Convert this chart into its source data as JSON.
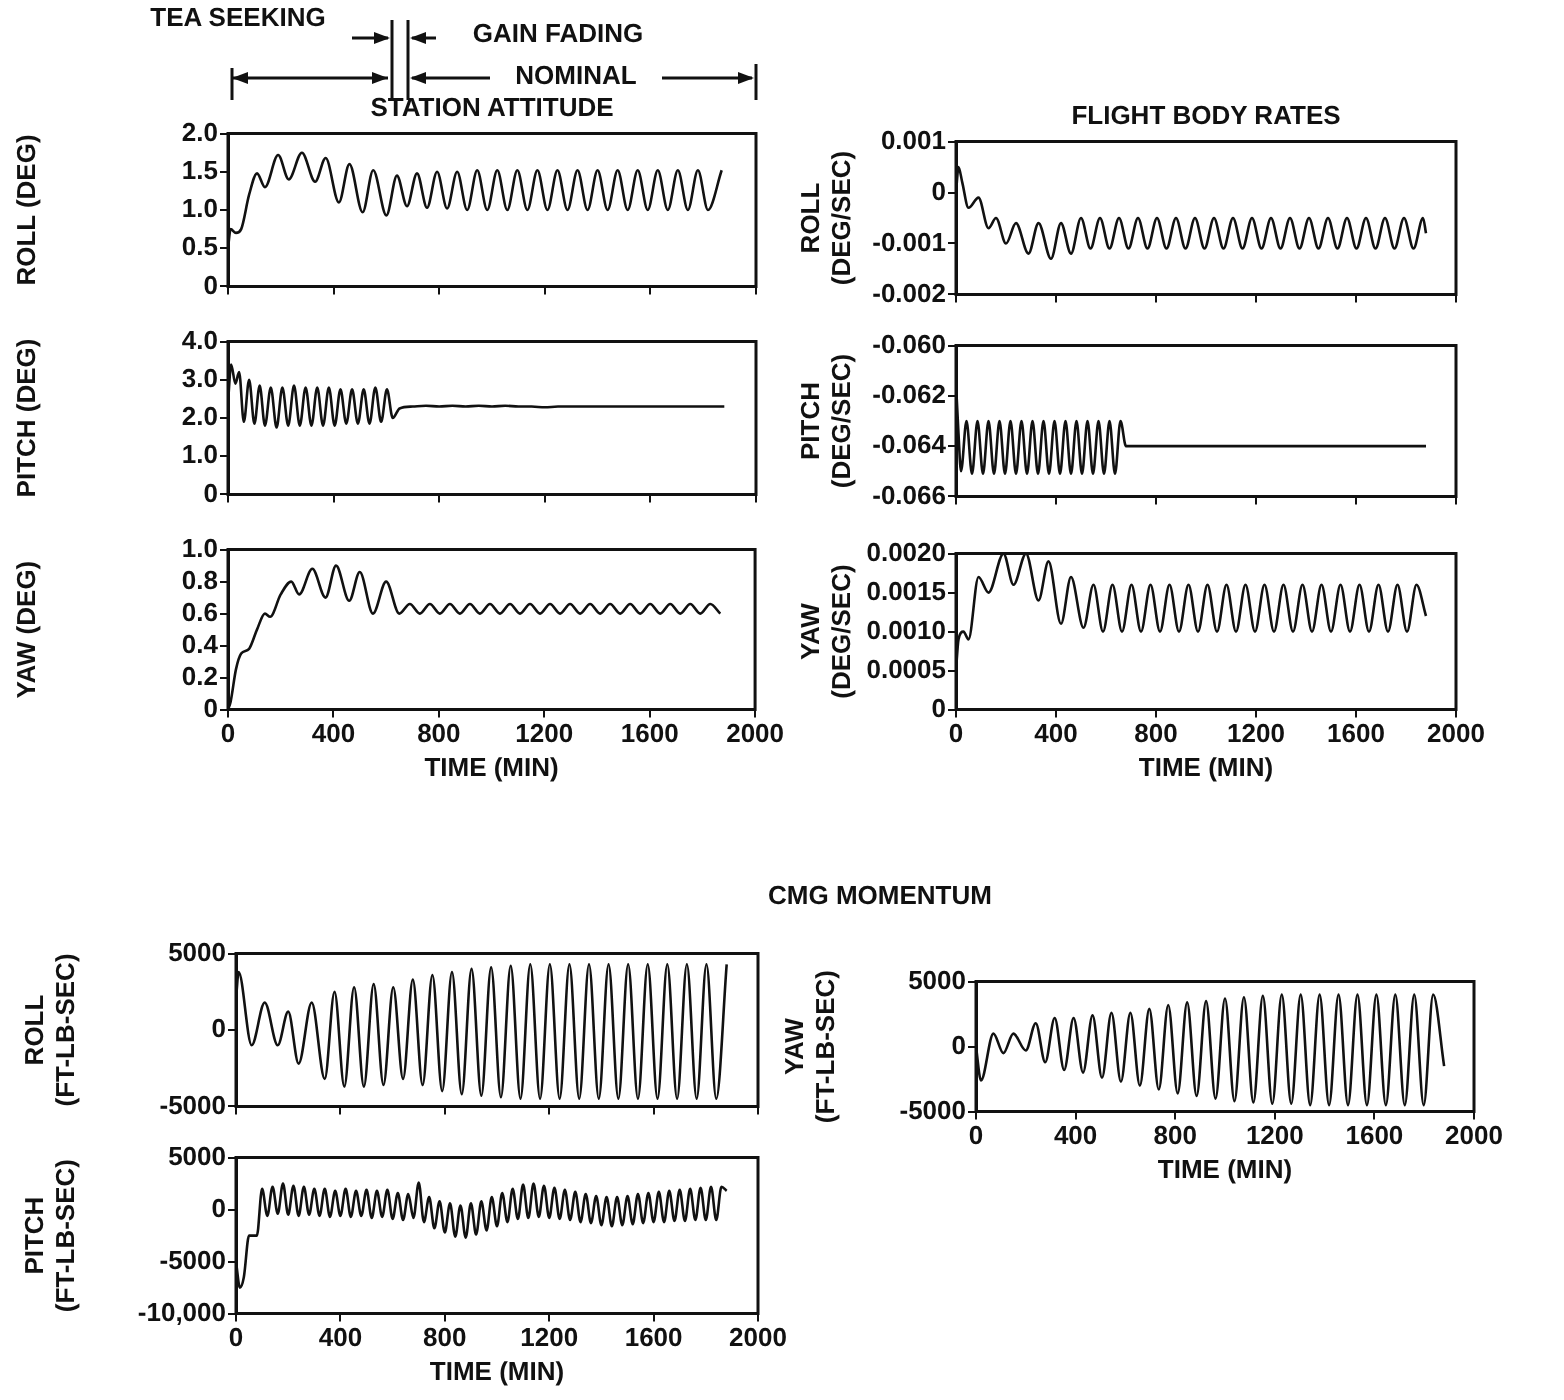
{
  "chart_data": [
    {
      "type": "line",
      "title": "STATION ATTITUDE",
      "ylabel": "ROLL (DEG)",
      "annotations": [
        "TEA SEEKING",
        "GAIN FADING",
        "NOMINAL"
      ],
      "xlim": [
        0,
        2000
      ],
      "xticks": [
        0,
        400,
        800,
        1200,
        1600,
        2000
      ],
      "ylim": [
        0,
        2
      ],
      "yticks": [
        0,
        0.5,
        {
          "value": 1,
          "label": "1.0"
        },
        1.5,
        {
          "value": 2,
          "label": "2.0"
        }
      ],
      "tick_labels": "y",
      "x": [
        0,
        10,
        30,
        50,
        80,
        110,
        140,
        190,
        230,
        280,
        330,
        370,
        420,
        460,
        510,
        550,
        600,
        640,
        678,
        716,
        754,
        792,
        830,
        868,
        906,
        944,
        982,
        1020,
        1058,
        1096,
        1134,
        1172,
        1210,
        1248,
        1286,
        1324,
        1362,
        1400,
        1438,
        1476,
        1514,
        1552,
        1590,
        1628,
        1666,
        1704,
        1742,
        1780,
        1818,
        1870
      ],
      "series": [
        {
          "color": "#111111",
          "values": [
            0.5,
            0.75,
            0.7,
            0.75,
            1.2,
            1.48,
            1.3,
            1.72,
            1.4,
            1.75,
            1.37,
            1.68,
            1.1,
            1.6,
            0.97,
            1.52,
            0.93,
            1.45,
            1.05,
            1.48,
            1.03,
            1.5,
            1.02,
            1.5,
            1.0,
            1.52,
            1.0,
            1.52,
            1.0,
            1.52,
            1.0,
            1.52,
            1.0,
            1.52,
            1.0,
            1.52,
            1.0,
            1.52,
            1.0,
            1.52,
            1.0,
            1.52,
            1.0,
            1.52,
            1.0,
            1.52,
            1.0,
            1.52,
            1.0,
            1.52
          ]
        }
      ]
    },
    {
      "type": "line",
      "ylabel": "PITCH (DEG)",
      "xlim": [
        0,
        2000
      ],
      "xticks": [
        0,
        400,
        800,
        1200,
        1600,
        2000
      ],
      "ylim": [
        0,
        4
      ],
      "yticks": [
        0,
        {
          "value": 1,
          "label": "1.0"
        },
        {
          "value": 2,
          "label": "2.0"
        },
        {
          "value": 3,
          "label": "3.0"
        },
        {
          "value": 4,
          "label": "4.0"
        }
      ],
      "tick_labels": "y",
      "x": [
        0,
        12,
        28,
        42,
        60,
        80,
        100,
        120,
        140,
        162,
        184,
        206,
        228,
        250,
        272,
        294,
        316,
        338,
        360,
        382,
        404,
        426,
        448,
        470,
        492,
        514,
        536,
        558,
        580,
        602,
        624,
        650,
        700,
        750,
        800,
        850,
        900,
        950,
        1000,
        1050,
        1100,
        1150,
        1200,
        1250,
        1300,
        1350,
        1400,
        1450,
        1500,
        1550,
        1600,
        1650,
        1700,
        1750,
        1800,
        1850,
        1880
      ],
      "series": [
        {
          "color": "#111111",
          "values": [
            2.4,
            3.4,
            2.9,
            3.2,
            1.9,
            3.0,
            1.85,
            2.85,
            1.8,
            2.8,
            1.75,
            2.8,
            1.8,
            2.85,
            1.8,
            2.8,
            1.8,
            2.8,
            1.8,
            2.8,
            1.8,
            2.75,
            1.85,
            2.75,
            1.85,
            2.75,
            1.85,
            2.8,
            1.9,
            2.75,
            2.0,
            2.25,
            2.3,
            2.32,
            2.3,
            2.32,
            2.3,
            2.32,
            2.3,
            2.32,
            2.3,
            2.3,
            2.28,
            2.3,
            2.3,
            2.3,
            2.3,
            2.3,
            2.3,
            2.3,
            2.3,
            2.3,
            2.3,
            2.3,
            2.3,
            2.3,
            2.3
          ]
        }
      ]
    },
    {
      "type": "line",
      "ylabel": "YAW (DEG)",
      "xlabel": "TIME (MIN)",
      "xlim": [
        0,
        2000
      ],
      "xticks": [
        0,
        400,
        800,
        1200,
        1600,
        2000
      ],
      "ylim": [
        0,
        1
      ],
      "yticks": [
        0,
        0.2,
        0.4,
        0.6,
        0.8,
        {
          "value": 1,
          "label": "1.0"
        }
      ],
      "x": [
        0,
        10,
        30,
        50,
        80,
        110,
        140,
        160,
        200,
        240,
        270,
        320,
        370,
        410,
        460,
        500,
        550,
        600,
        650,
        690,
        728,
        766,
        804,
        842,
        880,
        918,
        956,
        994,
        1032,
        1070,
        1108,
        1146,
        1184,
        1222,
        1260,
        1298,
        1336,
        1374,
        1412,
        1450,
        1488,
        1526,
        1564,
        1602,
        1640,
        1678,
        1716,
        1754,
        1792,
        1830,
        1868
      ],
      "series": [
        {
          "color": "#111111",
          "values": [
            0,
            0.05,
            0.25,
            0.35,
            0.38,
            0.5,
            0.6,
            0.58,
            0.72,
            0.8,
            0.72,
            0.88,
            0.7,
            0.9,
            0.68,
            0.86,
            0.6,
            0.8,
            0.6,
            0.66,
            0.6,
            0.66,
            0.6,
            0.66,
            0.6,
            0.66,
            0.6,
            0.66,
            0.6,
            0.66,
            0.6,
            0.66,
            0.6,
            0.66,
            0.6,
            0.66,
            0.6,
            0.66,
            0.6,
            0.66,
            0.6,
            0.66,
            0.6,
            0.66,
            0.6,
            0.66,
            0.6,
            0.66,
            0.6,
            0.66,
            0.6
          ]
        }
      ]
    },
    {
      "type": "line",
      "title": "FLIGHT BODY RATES",
      "ylabel": "ROLL (DEG/SEC)",
      "xlim": [
        0,
        2000
      ],
      "xticks": [
        0,
        400,
        800,
        1200,
        1600,
        2000
      ],
      "ylim": [
        -0.002,
        0.001
      ],
      "yticks": [
        -0.002,
        -0.001,
        0,
        0.001
      ],
      "tick_labels": "y",
      "x": [
        0,
        10,
        25,
        50,
        90,
        130,
        160,
        200,
        240,
        290,
        330,
        380,
        420,
        460,
        500,
        538,
        576,
        614,
        652,
        690,
        728,
        766,
        804,
        842,
        880,
        918,
        956,
        994,
        1032,
        1070,
        1108,
        1146,
        1184,
        1222,
        1260,
        1298,
        1336,
        1374,
        1412,
        1450,
        1488,
        1526,
        1564,
        1602,
        1640,
        1678,
        1716,
        1754,
        1792,
        1830,
        1868,
        1880
      ],
      "series": [
        {
          "color": "#111111",
          "values": [
            0,
            0.0005,
            0.0002,
            -0.0003,
            -0.0001,
            -0.0007,
            -0.0005,
            -0.001,
            -0.0006,
            -0.0012,
            -0.0006,
            -0.0013,
            -0.0006,
            -0.0012,
            -0.0005,
            -0.0011,
            -0.0005,
            -0.0011,
            -0.0005,
            -0.0011,
            -0.0005,
            -0.0011,
            -0.0005,
            -0.0011,
            -0.0005,
            -0.0011,
            -0.0005,
            -0.0011,
            -0.0005,
            -0.0011,
            -0.0005,
            -0.0011,
            -0.0005,
            -0.0011,
            -0.0005,
            -0.0011,
            -0.0005,
            -0.0011,
            -0.0005,
            -0.0011,
            -0.0005,
            -0.0011,
            -0.0005,
            -0.0011,
            -0.0005,
            -0.0011,
            -0.0005,
            -0.0011,
            -0.0005,
            -0.0011,
            -0.0005,
            -0.0008
          ]
        }
      ]
    },
    {
      "type": "line",
      "ylabel": "PITCH (DEG/SEC)",
      "xlim": [
        0,
        2000
      ],
      "xticks": [
        0,
        400,
        800,
        1200,
        1600,
        2000
      ],
      "ylim": [
        -0.066,
        -0.06
      ],
      "yticks": [
        -0.066,
        {
          "value": -0.064,
          "label": "-0.064"
        },
        {
          "value": -0.062,
          "label": "-0.062"
        },
        {
          "value": -0.06,
          "label": "-0.060"
        }
      ],
      "tick_labels": "y",
      "x": [
        0,
        10,
        20,
        42,
        64,
        86,
        108,
        130,
        152,
        174,
        196,
        218,
        240,
        262,
        284,
        306,
        328,
        350,
        372,
        394,
        416,
        438,
        460,
        482,
        504,
        526,
        548,
        570,
        592,
        614,
        636,
        658,
        680,
        700,
        800,
        900,
        1000,
        1100,
        1200,
        1300,
        1400,
        1500,
        1600,
        1700,
        1800,
        1880
      ],
      "series": [
        {
          "color": "#111111",
          "values": [
            -0.0615,
            -0.0635,
            -0.065,
            -0.063,
            -0.0651,
            -0.063,
            -0.0651,
            -0.063,
            -0.0651,
            -0.063,
            -0.0651,
            -0.063,
            -0.0651,
            -0.063,
            -0.0651,
            -0.063,
            -0.0651,
            -0.063,
            -0.0651,
            -0.063,
            -0.0651,
            -0.063,
            -0.0651,
            -0.063,
            -0.0651,
            -0.063,
            -0.0651,
            -0.063,
            -0.0651,
            -0.063,
            -0.0651,
            -0.063,
            -0.064,
            -0.064,
            -0.064,
            -0.064,
            -0.064,
            -0.064,
            -0.064,
            -0.064,
            -0.064,
            -0.064,
            -0.064,
            -0.064,
            -0.064,
            -0.064
          ]
        }
      ]
    },
    {
      "type": "line",
      "ylabel": "YAW (DEG/SEC)",
      "xlabel": "TIME (MIN)",
      "xlim": [
        0,
        2000
      ],
      "xticks": [
        0,
        400,
        800,
        1200,
        1600,
        2000
      ],
      "ylim": [
        0,
        0.002
      ],
      "yticks": [
        0,
        0.0005,
        {
          "value": 0.001,
          "label": "0.0010"
        },
        0.0015,
        {
          "value": 0.002,
          "label": "0.0020"
        }
      ],
      "x": [
        0,
        10,
        30,
        50,
        90,
        130,
        190,
        230,
        280,
        330,
        370,
        420,
        460,
        510,
        550,
        588,
        626,
        664,
        702,
        740,
        778,
        816,
        854,
        892,
        930,
        968,
        1006,
        1044,
        1082,
        1120,
        1158,
        1196,
        1234,
        1272,
        1310,
        1348,
        1386,
        1424,
        1462,
        1500,
        1538,
        1576,
        1614,
        1652,
        1690,
        1728,
        1766,
        1804,
        1842,
        1880
      ],
      "series": [
        {
          "color": "#111111",
          "values": [
            0.0005,
            0.0009,
            0.001,
            0.0009,
            0.0017,
            0.0015,
            0.002,
            0.0016,
            0.002,
            0.0014,
            0.0019,
            0.0011,
            0.0017,
            0.00105,
            0.0016,
            0.001,
            0.0016,
            0.001,
            0.0016,
            0.001,
            0.0016,
            0.001,
            0.0016,
            0.001,
            0.0016,
            0.001,
            0.0016,
            0.001,
            0.0016,
            0.001,
            0.0016,
            0.001,
            0.0016,
            0.001,
            0.0016,
            0.001,
            0.0016,
            0.001,
            0.0016,
            0.001,
            0.0016,
            0.001,
            0.0016,
            0.001,
            0.0016,
            0.001,
            0.0016,
            0.001,
            0.0016,
            0.0012
          ]
        }
      ]
    },
    {
      "type": "line",
      "title": "CMG MOMENTUM",
      "ylabel": "ROLL (FT-LB-SEC)",
      "xlim": [
        0,
        2000
      ],
      "xticks": [
        0,
        400,
        800,
        1200,
        1600,
        2000
      ],
      "ylim": [
        -5000,
        5000
      ],
      "yticks": [
        -5000,
        0,
        5000
      ],
      "tick_labels": "y",
      "x": [
        0,
        10,
        60,
        110,
        160,
        200,
        240,
        290,
        340,
        377.5,
        415,
        452.5,
        490,
        527.5,
        565,
        602.5,
        640,
        677.5,
        715,
        752.5,
        790,
        827.5,
        865,
        902.5,
        940,
        977.5,
        1015,
        1052.5,
        1090,
        1127.5,
        1165,
        1202.5,
        1240,
        1277.5,
        1315,
        1352.5,
        1390,
        1427.5,
        1465,
        1502.5,
        1540,
        1577.5,
        1615,
        1652.5,
        1690,
        1727.5,
        1765,
        1802.5,
        1840,
        1880
      ],
      "series": [
        {
          "color": "#111111",
          "values": [
            2000,
            3800,
            -1000,
            1800,
            -1000,
            1200,
            -2200,
            1800,
            -3200,
            2500,
            -3700,
            2800,
            -3700,
            3000,
            -3600,
            2800,
            -3200,
            3300,
            -3600,
            3600,
            -4000,
            3800,
            -4200,
            4000,
            -4300,
            4100,
            -4400,
            4200,
            -4500,
            4300,
            -4500,
            4300,
            -4500,
            4300,
            -4500,
            4300,
            -4500,
            4300,
            -4500,
            4300,
            -4500,
            4300,
            -4500,
            4300,
            -4500,
            4300,
            -4500,
            4300,
            -4500,
            4300
          ]
        }
      ]
    },
    {
      "type": "line",
      "ylabel": "PITCH (FT-LB-SEC)",
      "xlabel": "TIME (MIN)",
      "xlim": [
        0,
        2000
      ],
      "xticks": [
        0,
        400,
        800,
        1200,
        1600,
        2000
      ],
      "ylim": [
        -10000,
        5000
      ],
      "yticks": [
        {
          "value": -10000,
          "label": "-10,000"
        },
        -5000,
        0,
        5000
      ],
      "x": [
        0,
        15,
        30,
        50,
        80,
        100,
        120,
        140,
        160,
        180,
        200,
        220,
        240,
        260,
        280,
        300,
        320,
        340,
        360,
        380,
        400,
        420,
        440,
        460,
        480,
        500,
        520,
        540,
        560,
        580,
        600,
        620,
        640,
        660,
        680,
        700,
        720,
        740,
        760,
        780,
        800,
        820,
        840,
        860,
        880,
        900,
        920,
        940,
        960,
        980,
        1000,
        1020,
        1040,
        1060,
        1080,
        1100,
        1120,
        1140,
        1160,
        1180,
        1200,
        1220,
        1240,
        1260,
        1280,
        1300,
        1320,
        1340,
        1360,
        1380,
        1400,
        1420,
        1440,
        1460,
        1480,
        1500,
        1520,
        1540,
        1560,
        1580,
        1600,
        1620,
        1640,
        1660,
        1680,
        1700,
        1720,
        1740,
        1760,
        1780,
        1800,
        1820,
        1840,
        1860,
        1880
      ],
      "series": [
        {
          "color": "#111111",
          "values": [
            -5000,
            -7500,
            -6500,
            -2500,
            -2500,
            2000,
            -600,
            2200,
            -400,
            2500,
            -500,
            2300,
            -600,
            2200,
            -500,
            2000,
            -600,
            2000,
            -700,
            1800,
            -600,
            2000,
            -700,
            1800,
            -600,
            1900,
            -800,
            1800,
            -700,
            1900,
            -900,
            1600,
            -1000,
            1500,
            -800,
            2600,
            -1200,
            1200,
            -1800,
            800,
            -2200,
            600,
            -2600,
            400,
            -2700,
            600,
            -2400,
            800,
            -2000,
            1200,
            -1600,
            1600,
            -1200,
            2000,
            -900,
            2400,
            -800,
            2500,
            -700,
            2300,
            -800,
            2100,
            -900,
            1900,
            -1000,
            1700,
            -1200,
            1500,
            -1300,
            1300,
            -1500,
            1200,
            -1600,
            1200,
            -1500,
            1300,
            -1400,
            1500,
            -1300,
            1600,
            -1200,
            1700,
            -1200,
            1800,
            -1100,
            1900,
            -1100,
            2000,
            -1000,
            2100,
            -1000,
            2200,
            -1000,
            2200,
            1800
          ]
        }
      ]
    },
    {
      "type": "line",
      "ylabel": "YAW (FT-LB-SEC)",
      "xlabel": "TIME (MIN)",
      "xlim": [
        0,
        2000
      ],
      "xticks": [
        0,
        400,
        800,
        1200,
        1600,
        2000
      ],
      "ylim": [
        -5000,
        5000
      ],
      "yticks": [
        -5000,
        0,
        5000
      ],
      "x": [
        0,
        20,
        70,
        110,
        150,
        200,
        240,
        278,
        316,
        354,
        392,
        430,
        468,
        506,
        544,
        582,
        620,
        658,
        696,
        734,
        772,
        810,
        848,
        886,
        924,
        962,
        1000,
        1038,
        1076,
        1114,
        1152,
        1190,
        1228,
        1266,
        1304,
        1342,
        1380,
        1418,
        1456,
        1494,
        1532,
        1570,
        1608,
        1646,
        1684,
        1722,
        1760,
        1798,
        1836,
        1880
      ],
      "series": [
        {
          "color": "#111111",
          "values": [
            0,
            -2600,
            1000,
            -500,
            1000,
            -300,
            1800,
            -1200,
            2200,
            -1800,
            2200,
            -2000,
            2400,
            -2400,
            2600,
            -2700,
            2600,
            -3000,
            2900,
            -3300,
            3200,
            -3600,
            3400,
            -3800,
            3500,
            -4000,
            3700,
            -4200,
            3800,
            -4300,
            3900,
            -4400,
            4000,
            -4400,
            4000,
            -4500,
            4000,
            -4500,
            4000,
            -4500,
            4000,
            -4500,
            4000,
            -4500,
            4000,
            -4500,
            4000,
            -4500,
            4000,
            -1500
          ]
        }
      ]
    }
  ]
}
